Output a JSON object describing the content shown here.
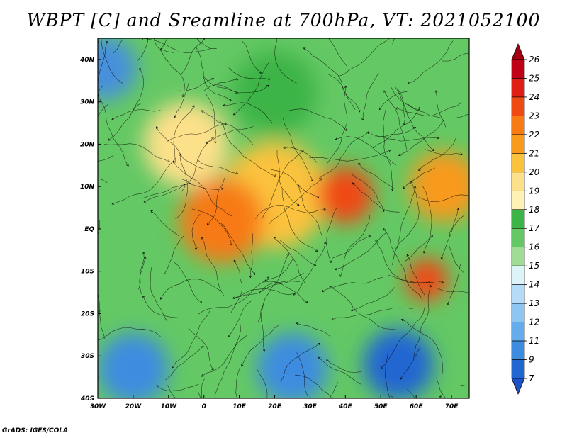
{
  "title": "WBPT [C] and Sreamline at 700hPa, VT: 2021052100",
  "credit": "GrADS: IGES/COLA",
  "map": {
    "lon_range": [
      -30,
      75
    ],
    "lat_range": [
      -40,
      45
    ],
    "x_tick_labels": [
      {
        "value": -30,
        "label": "30W"
      },
      {
        "value": -20,
        "label": "20W"
      },
      {
        "value": -10,
        "label": "10W"
      },
      {
        "value": 0,
        "label": "0"
      },
      {
        "value": 10,
        "label": "10E"
      },
      {
        "value": 20,
        "label": "20E"
      },
      {
        "value": 30,
        "label": "30E"
      },
      {
        "value": 40,
        "label": "40E"
      },
      {
        "value": 50,
        "label": "50E"
      },
      {
        "value": 60,
        "label": "60E"
      },
      {
        "value": 70,
        "label": "70E"
      }
    ],
    "y_tick_labels": [
      {
        "value": 40,
        "label": "40N"
      },
      {
        "value": 30,
        "label": "30N"
      },
      {
        "value": 20,
        "label": "20N"
      },
      {
        "value": 10,
        "label": "10N"
      },
      {
        "value": 0,
        "label": "EQ"
      },
      {
        "value": -10,
        "label": "10S"
      },
      {
        "value": -20,
        "label": "20S"
      },
      {
        "value": -30,
        "label": "30S"
      },
      {
        "value": -40,
        "label": "40S"
      }
    ]
  },
  "colorbar": {
    "labels": [
      "26",
      "25",
      "24",
      "23",
      "22",
      "21",
      "20",
      "19",
      "18",
      "17",
      "16",
      "15",
      "14",
      "13",
      "12",
      "11",
      "9",
      "7"
    ],
    "colors": [
      "#a50010",
      "#c00014",
      "#e01e16",
      "#f04a14",
      "#f77a14",
      "#f89a1c",
      "#fbc23c",
      "#fde08a",
      "#fff2b4",
      "#3cb447",
      "#64c864",
      "#a0dc94",
      "#dcf4f8",
      "#b4dcf8",
      "#8ec6f2",
      "#64acec",
      "#3c8ce0",
      "#2266d2",
      "#1c52c8"
    ]
  },
  "fields": {
    "background_color": "#64c864",
    "regions": [
      {
        "name": "north-atlantic-cool",
        "color": "#4690dc",
        "lon": -28,
        "lat": 38,
        "r": 9
      },
      {
        "name": "west-africa-warm",
        "color": "#fde08a",
        "lon": -5,
        "lat": 20,
        "r": 12
      },
      {
        "name": "sahel-warm",
        "color": "#fbc23c",
        "lon": 20,
        "lat": 8,
        "r": 15
      },
      {
        "name": "equatorial-hot",
        "color": "#f77a14",
        "lon": 5,
        "lat": 2,
        "r": 12
      },
      {
        "name": "east-africa-hot",
        "color": "#f04a14",
        "lon": 40,
        "lat": 8,
        "r": 8
      },
      {
        "name": "arabian-sea-hot",
        "color": "#f89a1c",
        "lon": 68,
        "lat": 10,
        "r": 10
      },
      {
        "name": "indian-ocean-hot",
        "color": "#f04a14",
        "lon": 63,
        "lat": -12,
        "r": 6
      },
      {
        "name": "south-africa-cool",
        "color": "#3c8ce0",
        "lon": 25,
        "lat": -33,
        "r": 10
      },
      {
        "name": "south-indian-cool",
        "color": "#2266d2",
        "lon": 55,
        "lat": -32,
        "r": 10
      },
      {
        "name": "south-atlantic-cool",
        "color": "#3c8ce0",
        "lon": -20,
        "lat": -33,
        "r": 10
      },
      {
        "name": "north-africa-green",
        "color": "#3cb447",
        "lon": 20,
        "lat": 32,
        "r": 12
      }
    ]
  }
}
